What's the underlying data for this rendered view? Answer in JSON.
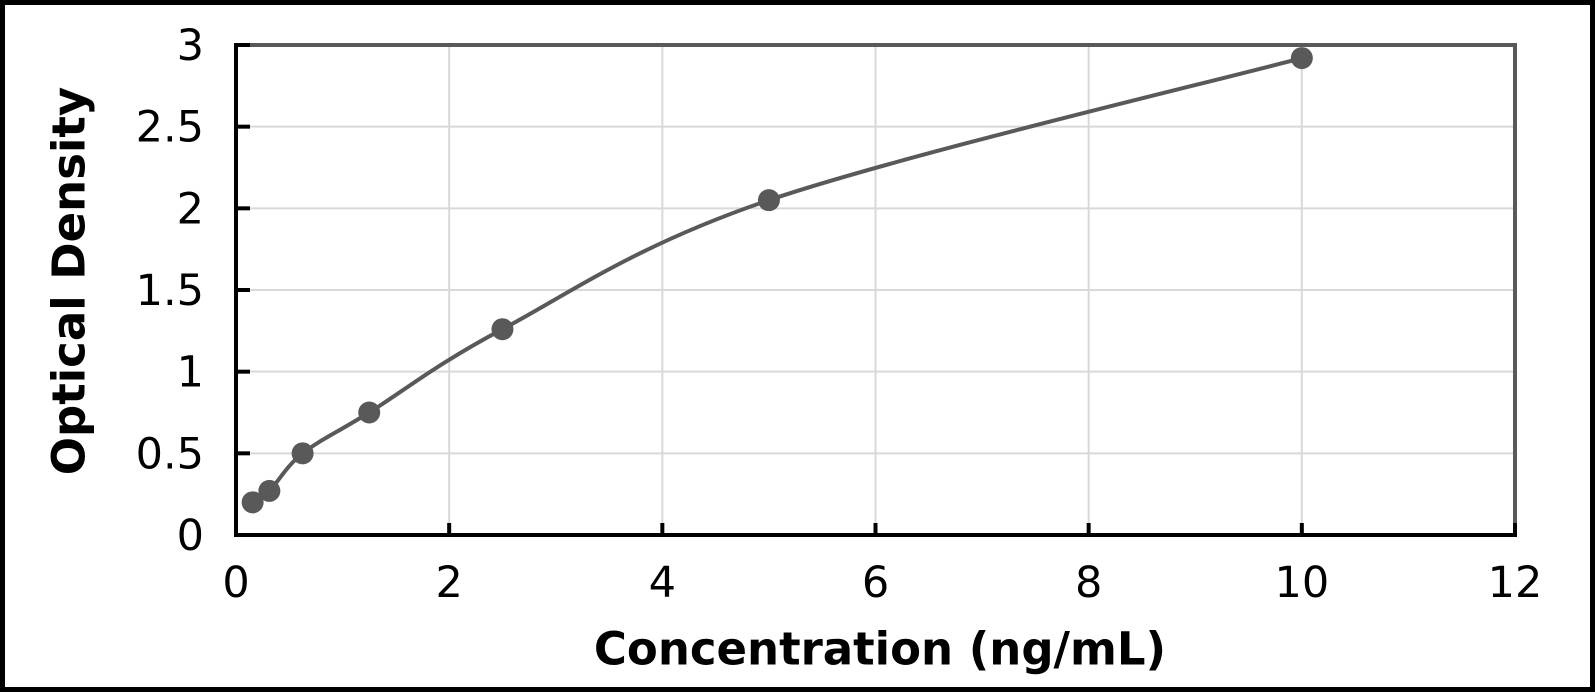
{
  "chart_data": {
    "type": "scatter",
    "title": "",
    "xlabel": "Concentration (ng/mL)",
    "ylabel": "Optical Density",
    "x": [
      0.156,
      0.313,
      0.625,
      1.25,
      2.5,
      5,
      10
    ],
    "y": [
      0.2,
      0.27,
      0.5,
      0.75,
      1.26,
      2.05,
      2.92
    ],
    "xlim": [
      0,
      12
    ],
    "ylim": [
      0,
      3
    ],
    "x_tick_values": [
      0,
      2,
      4,
      6,
      8,
      10,
      12
    ],
    "x_tick_labels": [
      "0",
      "2",
      "4",
      "6",
      "8",
      "10",
      "12"
    ],
    "y_tick_values": [
      0,
      0.5,
      1,
      1.5,
      2,
      2.5,
      3
    ],
    "y_tick_labels": [
      "0",
      "0.5",
      "1",
      "1.5",
      "2",
      "2.5",
      "3"
    ],
    "grid": true,
    "legend": "none",
    "line_style": "smooth",
    "marker": "circle",
    "marker_radius": 11,
    "colors": {
      "line": "#595959",
      "marker": "#595959",
      "gridline": "#d9d9d9",
      "axis": "#000000",
      "plot_border": "#595959",
      "tick_label": "#000000",
      "title": "#000000",
      "background": "#ffffff",
      "frame": "#000000"
    }
  }
}
